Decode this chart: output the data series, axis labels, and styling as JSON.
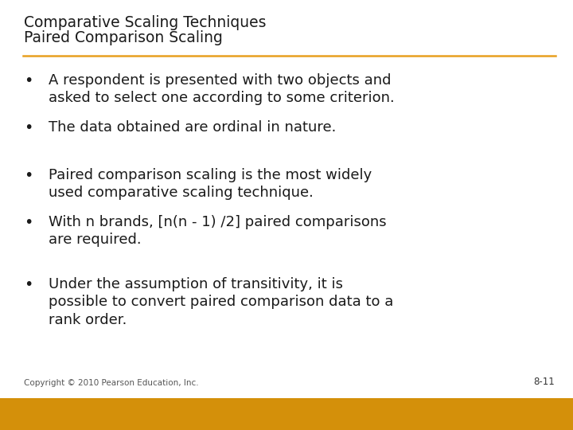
{
  "title_line1": "Comparative Scaling Techniques",
  "title_line2": "Paired Comparison Scaling",
  "title_color": "#1A1A1A",
  "separator_color": "#E8A020",
  "background_color": "#FFFFFF",
  "footer_bar_color": "#D4900A",
  "footer_text": "Copyright © 2010 Pearson Education, Inc.",
  "page_number": "8-11",
  "bullets": [
    "A respondent is presented with two objects and\nasked to select one according to some criterion.",
    "The data obtained are ordinal in nature.",
    "Paired comparison scaling is the most widely\nused comparative scaling technique.",
    "With n brands, [n(n - 1) /2] paired comparisons\nare required.",
    "Under the assumption of transitivity, it is\npossible to convert paired comparison data to a\nrank order."
  ],
  "bullet_color": "#1A1A1A",
  "title_fontsize": 13.5,
  "bullet_fontsize": 13.0,
  "footer_fontsize": 7.5,
  "page_num_fontsize": 8.5
}
